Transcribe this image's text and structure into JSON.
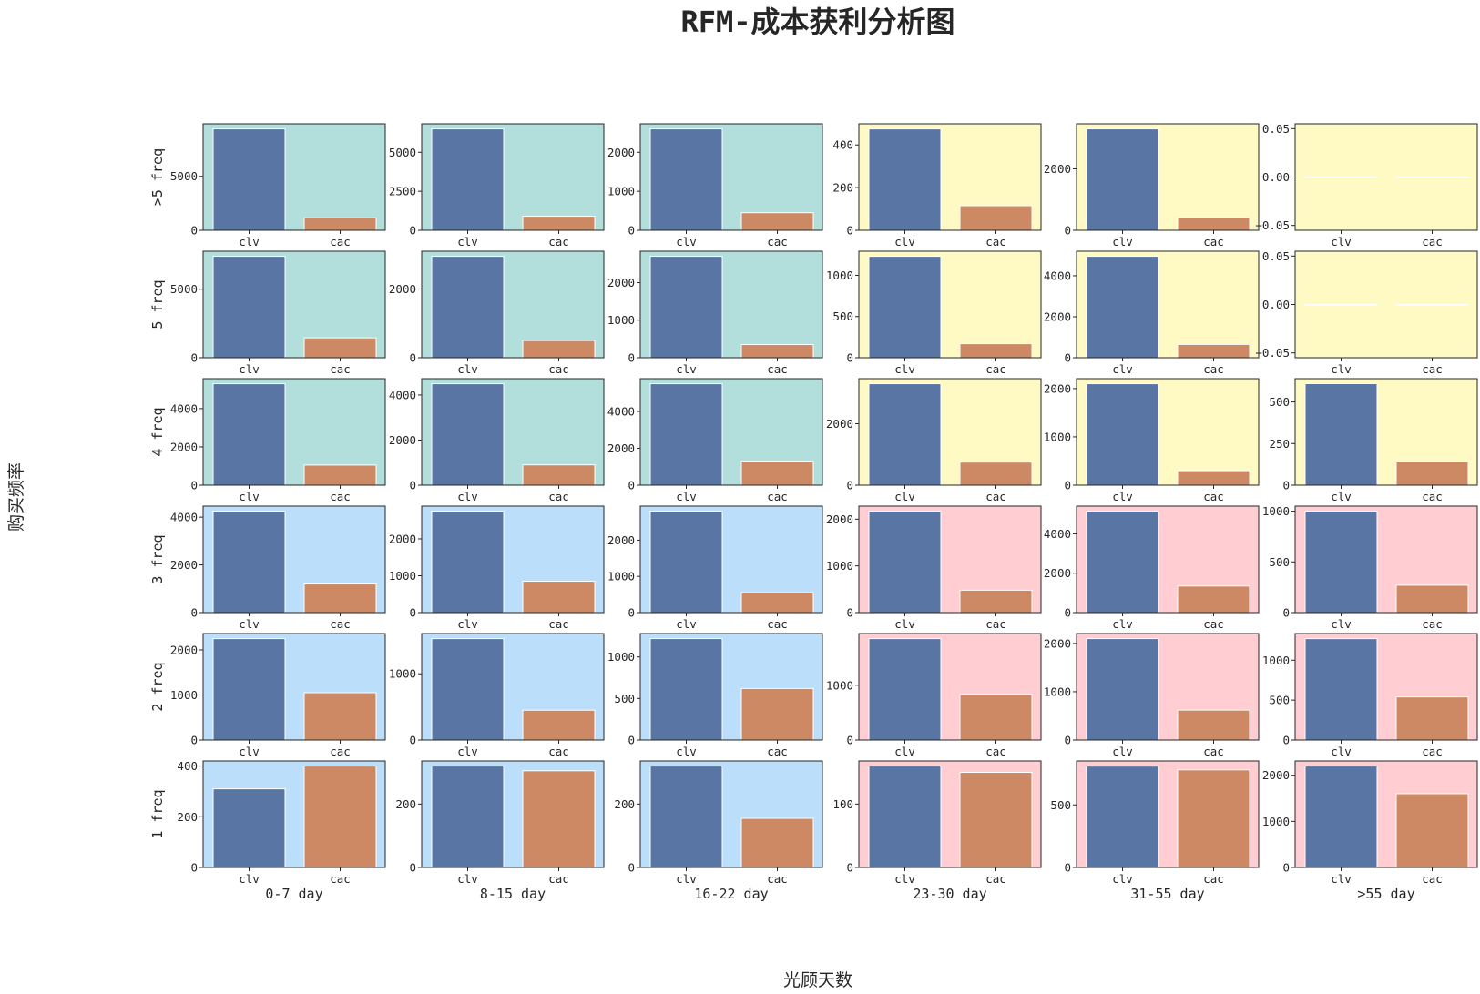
{
  "chart_data": {
    "type": "bar",
    "title": "RFM-成本获利分析图",
    "xlabel": "光顾天数",
    "ylabel": "购买频率",
    "categories": [
      "clv",
      "cac"
    ],
    "series_colors": {
      "clv": "#5975a4",
      "cac": "#cc8963"
    },
    "quadrant_colors": {
      "green": "#b2dfdb",
      "yellow": "#fff9c4",
      "blue": "#bbdefb",
      "pink": "#ffcdd2"
    },
    "columns": [
      "0-7 day",
      "8-15 day",
      "16-22 day",
      "23-30 day",
      "31-55 day",
      ">55 day"
    ],
    "rows": [
      ">5 freq",
      "5 freq",
      "4 freq",
      "3 freq",
      "2 freq",
      "1 freq"
    ],
    "panels": [
      [
        {
          "values": [
            9400,
            1150
          ],
          "ylim": [
            0,
            9870
          ],
          "yticks": [
            "0",
            "5000"
          ],
          "ytickvals": [
            0,
            5000
          ],
          "bg": "green"
        },
        {
          "values": [
            6500,
            900
          ],
          "ylim": [
            0,
            6825
          ],
          "yticks": [
            "0",
            "2500",
            "5000"
          ],
          "ytickvals": [
            0,
            2500,
            5000
          ],
          "bg": "green"
        },
        {
          "values": [
            2600,
            450
          ],
          "ylim": [
            0,
            2730
          ],
          "yticks": [
            "0",
            "1000",
            "2000"
          ],
          "ytickvals": [
            0,
            1000,
            2000
          ],
          "bg": "green"
        },
        {
          "values": [
            475,
            115
          ],
          "ylim": [
            0,
            499
          ],
          "yticks": [
            "0",
            "200",
            "400"
          ],
          "ytickvals": [
            0,
            200,
            400
          ],
          "bg": "yellow"
        },
        {
          "values": [
            3300,
            400
          ],
          "ylim": [
            0,
            3465
          ],
          "yticks": [
            "0",
            "2000"
          ],
          "ytickvals": [
            0,
            2000
          ],
          "bg": "yellow"
        },
        {
          "values": [
            0,
            0
          ],
          "ylim": [
            -0.055,
            0.055
          ],
          "yticks": [
            "−0.05",
            "0.00",
            "0.05"
          ],
          "ytickvals": [
            -0.05,
            0,
            0.05
          ],
          "bg": "yellow"
        }
      ],
      [
        {
          "values": [
            7400,
            1450
          ],
          "ylim": [
            0,
            7770
          ],
          "yticks": [
            "0",
            "5000"
          ],
          "ytickvals": [
            0,
            5000
          ],
          "bg": "green"
        },
        {
          "values": [
            2950,
            500
          ],
          "ylim": [
            0,
            3098
          ],
          "yticks": [
            "0",
            "2000"
          ],
          "ytickvals": [
            0,
            2000
          ],
          "bg": "green"
        },
        {
          "values": [
            2700,
            350
          ],
          "ylim": [
            0,
            2835
          ],
          "yticks": [
            "0",
            "1000",
            "2000"
          ],
          "ytickvals": [
            0,
            1000,
            2000
          ],
          "bg": "green"
        },
        {
          "values": [
            1230,
            170
          ],
          "ylim": [
            0,
            1292
          ],
          "yticks": [
            "0",
            "500",
            "1000"
          ],
          "ytickvals": [
            0,
            500,
            1000
          ],
          "bg": "yellow"
        },
        {
          "values": [
            4950,
            650
          ],
          "ylim": [
            0,
            5198
          ],
          "yticks": [
            "0",
            "2000",
            "4000"
          ],
          "ytickvals": [
            0,
            2000,
            4000
          ],
          "bg": "yellow"
        },
        {
          "values": [
            0,
            0
          ],
          "ylim": [
            -0.055,
            0.055
          ],
          "yticks": [
            "−0.05",
            "0.00",
            "0.05"
          ],
          "ytickvals": [
            -0.05,
            0,
            0.05
          ],
          "bg": "yellow"
        }
      ],
      [
        {
          "values": [
            5300,
            1050
          ],
          "ylim": [
            0,
            5565
          ],
          "yticks": [
            "0",
            "2000",
            "4000"
          ],
          "ytickvals": [
            0,
            2000,
            4000
          ],
          "bg": "green"
        },
        {
          "values": [
            4500,
            900
          ],
          "ylim": [
            0,
            4725
          ],
          "yticks": [
            "0",
            "2000",
            "4000"
          ],
          "ytickvals": [
            0,
            2000,
            4000
          ],
          "bg": "green"
        },
        {
          "values": [
            5500,
            1300
          ],
          "ylim": [
            0,
            5775
          ],
          "yticks": [
            "0",
            "2000",
            "4000"
          ],
          "ytickvals": [
            0,
            2000,
            4000
          ],
          "bg": "green"
        },
        {
          "values": [
            3300,
            750
          ],
          "ylim": [
            0,
            3465
          ],
          "yticks": [
            "0",
            "2000"
          ],
          "ytickvals": [
            0,
            2000
          ],
          "bg": "yellow"
        },
        {
          "values": [
            2100,
            300
          ],
          "ylim": [
            0,
            2205
          ],
          "yticks": [
            "0",
            "1000",
            "2000"
          ],
          "ytickvals": [
            0,
            1000,
            2000
          ],
          "bg": "yellow"
        },
        {
          "values": [
            610,
            140
          ],
          "ylim": [
            0,
            640
          ],
          "yticks": [
            "0",
            "250",
            "500"
          ],
          "ytickvals": [
            0,
            250,
            500
          ],
          "bg": "yellow"
        }
      ],
      [
        {
          "values": [
            4250,
            1200
          ],
          "ylim": [
            0,
            4463
          ],
          "yticks": [
            "0",
            "2000",
            "4000"
          ],
          "ytickvals": [
            0,
            2000,
            4000
          ],
          "bg": "blue"
        },
        {
          "values": [
            2750,
            850
          ],
          "ylim": [
            0,
            2888
          ],
          "yticks": [
            "0",
            "1000",
            "2000"
          ],
          "ytickvals": [
            0,
            1000,
            2000
          ],
          "bg": "blue"
        },
        {
          "values": [
            2800,
            550
          ],
          "ylim": [
            0,
            2940
          ],
          "yticks": [
            "0",
            "1000",
            "2000"
          ],
          "ytickvals": [
            0,
            1000,
            2000
          ],
          "bg": "blue"
        },
        {
          "values": [
            2170,
            480
          ],
          "ylim": [
            0,
            2279
          ],
          "yticks": [
            "0",
            "1000",
            "2000"
          ],
          "ytickvals": [
            0,
            1000,
            2000
          ],
          "bg": "pink"
        },
        {
          "values": [
            5150,
            1350
          ],
          "ylim": [
            0,
            5408
          ],
          "yticks": [
            "0",
            "2000",
            "4000"
          ],
          "ytickvals": [
            0,
            2000,
            4000
          ],
          "bg": "pink"
        },
        {
          "values": [
            1000,
            270
          ],
          "ylim": [
            0,
            1050
          ],
          "yticks": [
            "0",
            "500",
            "1000"
          ],
          "ytickvals": [
            0,
            500,
            1000
          ],
          "bg": "pink"
        }
      ],
      [
        {
          "values": [
            2250,
            1050
          ],
          "ylim": [
            0,
            2363
          ],
          "yticks": [
            "0",
            "1000",
            "2000"
          ],
          "ytickvals": [
            0,
            1000,
            2000
          ],
          "bg": "blue"
        },
        {
          "values": [
            1530,
            450
          ],
          "ylim": [
            0,
            1607
          ],
          "yticks": [
            "0",
            "1000"
          ],
          "ytickvals": [
            0,
            1000
          ],
          "bg": "blue"
        },
        {
          "values": [
            1220,
            620
          ],
          "ylim": [
            0,
            1281
          ],
          "yticks": [
            "0",
            "500",
            "1000"
          ],
          "ytickvals": [
            0,
            500,
            1000
          ],
          "bg": "blue"
        },
        {
          "values": [
            1850,
            830
          ],
          "ylim": [
            0,
            1943
          ],
          "yticks": [
            "0",
            "1000"
          ],
          "ytickvals": [
            0,
            1000
          ],
          "bg": "pink"
        },
        {
          "values": [
            2100,
            620
          ],
          "ylim": [
            0,
            2205
          ],
          "yticks": [
            "0",
            "1000",
            "2000"
          ],
          "ytickvals": [
            0,
            1000,
            2000
          ],
          "bg": "pink"
        },
        {
          "values": [
            1270,
            540
          ],
          "ylim": [
            0,
            1334
          ],
          "yticks": [
            "0",
            "500",
            "1000"
          ],
          "ytickvals": [
            0,
            500,
            1000
          ],
          "bg": "pink"
        }
      ],
      [
        {
          "values": [
            310,
            400
          ],
          "ylim": [
            0,
            420
          ],
          "yticks": [
            "0",
            "200",
            "400"
          ],
          "ytickvals": [
            0,
            200,
            400
          ],
          "bg": "blue"
        },
        {
          "values": [
            320,
            305
          ],
          "ylim": [
            0,
            336
          ],
          "yticks": [
            "0",
            "200"
          ],
          "ytickvals": [
            0,
            200
          ],
          "bg": "blue"
        },
        {
          "values": [
            320,
            155
          ],
          "ylim": [
            0,
            336
          ],
          "yticks": [
            "0",
            "200"
          ],
          "ytickvals": [
            0,
            200
          ],
          "bg": "blue"
        },
        {
          "values": [
            160,
            150
          ],
          "ylim": [
            0,
            168
          ],
          "yticks": [
            "0",
            "100"
          ],
          "ytickvals": [
            0,
            100
          ],
          "bg": "pink"
        },
        {
          "values": [
            810,
            780
          ],
          "ylim": [
            0,
            851
          ],
          "yticks": [
            "0",
            "500"
          ],
          "ytickvals": [
            0,
            500
          ],
          "bg": "pink"
        },
        {
          "values": [
            2200,
            1600
          ],
          "ylim": [
            0,
            2310
          ],
          "yticks": [
            "0",
            "1000",
            "2000"
          ],
          "ytickvals": [
            0,
            1000,
            2000
          ],
          "bg": "pink"
        }
      ]
    ]
  }
}
